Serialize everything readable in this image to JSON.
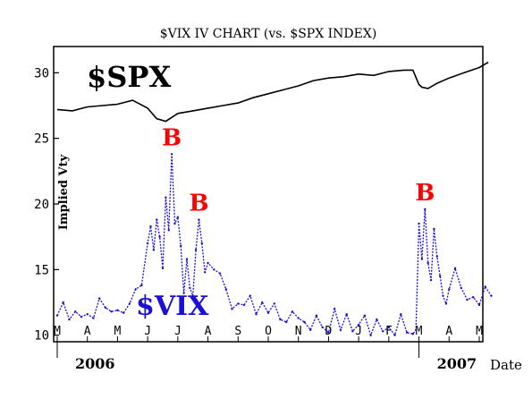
{
  "colors": {
    "spx": "#000000",
    "vix": "#1a10d8",
    "buy_signal": "#ff0000",
    "axis": "#000000"
  },
  "chart_data": {
    "type": "line",
    "title": "$VIX IV CHART (vs. $SPX INDEX)",
    "ylabel": "Implied Vty",
    "xlabel": "Date",
    "ylim": [
      9.5,
      32
    ],
    "yticks": [
      10,
      15,
      20,
      25,
      30
    ],
    "months": [
      "M",
      "A",
      "M",
      "J",
      "J",
      "A",
      "S",
      "O",
      "N",
      "D",
      "J",
      "F",
      "M",
      "A",
      "M"
    ],
    "years": [
      {
        "label": "2006",
        "month_index": 0
      },
      {
        "label": "2007",
        "month_index": 12
      }
    ],
    "series": [
      {
        "name": "$SPX",
        "month_index": [
          0,
          0.5,
          1,
          1.5,
          2,
          2.5,
          3,
          3.3,
          3.6,
          4,
          4.5,
          5,
          5.5,
          6,
          6.5,
          7,
          7.5,
          8,
          8.5,
          9,
          9.5,
          10,
          10.5,
          11,
          11.5,
          11.8,
          12.0,
          12.1,
          12.3,
          12.6,
          13,
          13.5,
          14,
          14.3
        ],
        "values": [
          27.2,
          27.1,
          27.4,
          27.5,
          27.6,
          27.9,
          27.3,
          26.5,
          26.3,
          26.9,
          27.1,
          27.3,
          27.5,
          27.7,
          28.1,
          28.4,
          28.7,
          29.0,
          29.4,
          29.6,
          29.7,
          29.9,
          29.8,
          30.1,
          30.2,
          30.2,
          29.1,
          28.9,
          28.8,
          29.2,
          29.6,
          30.0,
          30.4,
          30.8
        ]
      },
      {
        "name": "$VIX",
        "month_index": [
          0,
          0.2,
          0.4,
          0.6,
          0.8,
          1,
          1.2,
          1.4,
          1.6,
          1.8,
          2,
          2.2,
          2.4,
          2.6,
          2.8,
          3,
          3.1,
          3.2,
          3.3,
          3.4,
          3.5,
          3.6,
          3.7,
          3.8,
          3.9,
          4,
          4.1,
          4.2,
          4.3,
          4.4,
          4.5,
          4.6,
          4.7,
          4.8,
          4.9,
          5,
          5.2,
          5.4,
          5.6,
          5.8,
          6,
          6.2,
          6.4,
          6.6,
          6.8,
          7,
          7.2,
          7.4,
          7.6,
          7.8,
          8,
          8.2,
          8.4,
          8.6,
          8.8,
          9,
          9.2,
          9.4,
          9.6,
          9.8,
          10,
          10.2,
          10.4,
          10.6,
          10.8,
          11,
          11.2,
          11.4,
          11.6,
          11.8,
          11.9,
          12,
          12.1,
          12.2,
          12.3,
          12.4,
          12.5,
          12.6,
          12.7,
          12.8,
          12.9,
          13,
          13.2,
          13.4,
          13.6,
          13.8,
          14,
          14.2,
          14.4
        ],
        "values": [
          11.5,
          12.5,
          11.2,
          11.8,
          11.4,
          11.6,
          11.3,
          12.8,
          12.1,
          11.8,
          11.9,
          11.7,
          12.4,
          13.5,
          13.8,
          17.0,
          18.3,
          16.5,
          18.8,
          17.5,
          15.1,
          20.5,
          18.0,
          23.8,
          18.5,
          19.0,
          16.8,
          13.2,
          15.8,
          13.6,
          13.0,
          16.5,
          18.8,
          17.0,
          14.8,
          15.5,
          15.0,
          14.7,
          13.5,
          12.0,
          12.4,
          12.3,
          13.0,
          11.6,
          12.5,
          11.7,
          12.4,
          11.2,
          11.0,
          11.8,
          11.3,
          11.0,
          10.4,
          11.5,
          10.6,
          10.2,
          12.0,
          10.4,
          11.6,
          10.3,
          10.8,
          11.5,
          10.0,
          11.2,
          10.3,
          10.6,
          10.0,
          11.6,
          10.2,
          10.1,
          10.4,
          18.5,
          15.8,
          19.6,
          15.5,
          14.2,
          18.1,
          16.0,
          14.5,
          13.0,
          12.4,
          13.5,
          15.1,
          13.6,
          12.7,
          12.9,
          12.3,
          13.7,
          13.0
        ]
      }
    ],
    "annotations": [
      {
        "text": "$SPX",
        "role": "series-label"
      },
      {
        "text": "$VIX",
        "role": "series-label"
      },
      {
        "text": "B",
        "role": "buy-signal",
        "month_index": 3.8,
        "value": 23.8
      },
      {
        "text": "B",
        "role": "buy-signal",
        "month_index": 4.7,
        "value": 18.8
      },
      {
        "text": "B",
        "role": "buy-signal",
        "month_index": 12.2,
        "value": 19.6
      }
    ]
  }
}
